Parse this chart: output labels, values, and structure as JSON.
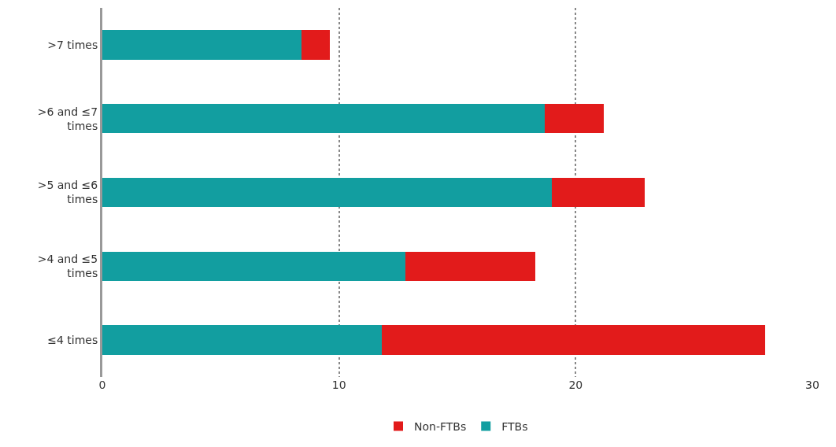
{
  "chart_data": {
    "type": "bar",
    "orientation": "horizontal",
    "stacked": true,
    "categories": [
      ">7 times",
      ">6 and ≤7 times",
      ">5 and ≤6 times",
      ">4 and ≤5 times",
      "≤4 times"
    ],
    "series": [
      {
        "name": "FTBs",
        "color": "#129ea0",
        "values": [
          8.4,
          18.7,
          19.0,
          12.8,
          11.8
        ]
      },
      {
        "name": "Non-FTBs",
        "color": "#e21b1b",
        "values": [
          1.2,
          2.5,
          3.9,
          5.5,
          16.2
        ]
      }
    ],
    "xlim": [
      0,
      30
    ],
    "xticks": [
      0,
      10,
      20,
      30
    ],
    "grid": "x",
    "legend": "bottom"
  }
}
